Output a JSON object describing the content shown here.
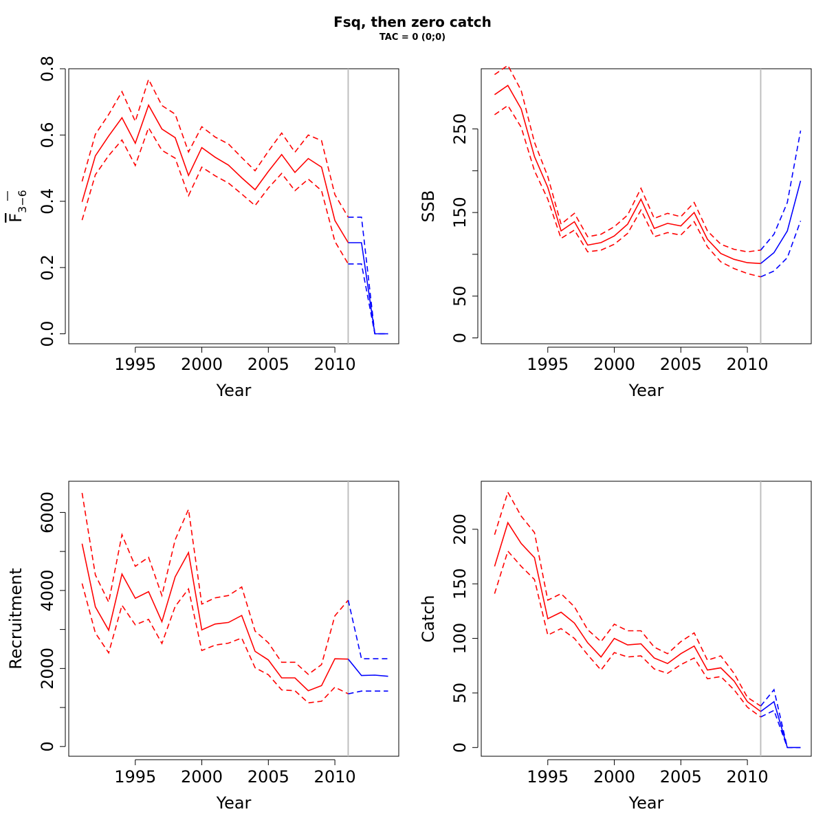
{
  "title": "Fsq, then zero catch",
  "subtitle": "TAC = 0 (0;0)",
  "colors": {
    "historical": "#ff0000",
    "forecast": "#0000ff",
    "divider": "#bebebe"
  },
  "chart_data": [
    {
      "type": "line",
      "ylabel": "F̅ 3−6",
      "ylabel_main": "F",
      "ylabel_sub": "3−6",
      "xlabel": "Year",
      "xlim": [
        1990,
        2014.8
      ],
      "ylim": [
        -0.03,
        0.8
      ],
      "xticks": [
        "1995",
        "2000",
        "2005",
        "2010"
      ],
      "yticks": [
        "0.0",
        "0.2",
        "0.4",
        "0.6",
        "0.8"
      ],
      "ytick_values": [
        0,
        0.2,
        0.4,
        0.6,
        0.8
      ],
      "ytick_minor": [],
      "divider_year": 2011,
      "series": [
        {
          "role": "estimate",
          "period": "historical",
          "style": "solid",
          "x": [
            1991,
            1992,
            1993,
            1994,
            1995,
            1996,
            1997,
            1998,
            1999,
            2000,
            2001,
            2002,
            2003,
            2004,
            2005,
            2006,
            2007,
            2008,
            2009,
            2010,
            2011
          ],
          "values": [
            0.398,
            0.537,
            0.597,
            0.652,
            0.575,
            0.69,
            0.618,
            0.592,
            0.478,
            0.562,
            0.533,
            0.509,
            0.471,
            0.435,
            0.49,
            0.541,
            0.487,
            0.529,
            0.503,
            0.342,
            0.275
          ]
        },
        {
          "role": "upper",
          "period": "historical",
          "style": "dashed",
          "x": [
            1991,
            1992,
            1993,
            1994,
            1995,
            1996,
            1997,
            1998,
            1999,
            2000,
            2001,
            2002,
            2003,
            2004,
            2005,
            2006,
            2007,
            2008,
            2009,
            2010,
            2011
          ],
          "values": [
            0.46,
            0.602,
            0.662,
            0.731,
            0.641,
            0.768,
            0.689,
            0.663,
            0.549,
            0.625,
            0.594,
            0.573,
            0.532,
            0.492,
            0.551,
            0.606,
            0.548,
            0.6,
            0.583,
            0.42,
            0.352
          ]
        },
        {
          "role": "lower",
          "period": "historical",
          "style": "dashed",
          "x": [
            1991,
            1992,
            1993,
            1994,
            1995,
            1996,
            1997,
            1998,
            1999,
            2000,
            2001,
            2002,
            2003,
            2004,
            2005,
            2006,
            2007,
            2008,
            2009,
            2010,
            2011
          ],
          "values": [
            0.343,
            0.48,
            0.538,
            0.585,
            0.508,
            0.622,
            0.554,
            0.53,
            0.417,
            0.503,
            0.477,
            0.455,
            0.422,
            0.387,
            0.44,
            0.484,
            0.432,
            0.467,
            0.432,
            0.279,
            0.211
          ]
        },
        {
          "role": "estimate",
          "period": "forecast",
          "style": "solid",
          "x": [
            2011,
            2012,
            2013,
            2014
          ],
          "values": [
            0.275,
            0.275,
            0.0,
            0.0
          ]
        },
        {
          "role": "upper",
          "period": "forecast",
          "style": "dashed",
          "x": [
            2011,
            2012,
            2013,
            2014
          ],
          "values": [
            0.352,
            0.352,
            0.0,
            0.0
          ]
        },
        {
          "role": "lower",
          "period": "forecast",
          "style": "dashed",
          "x": [
            2011,
            2012,
            2013,
            2014
          ],
          "values": [
            0.211,
            0.211,
            0.0,
            0.0
          ]
        }
      ]
    },
    {
      "type": "line",
      "ylabel": "SSB",
      "xlabel": "Year",
      "xlim": [
        1990,
        2014.8
      ],
      "ylim": [
        -7,
        322
      ],
      "xticks": [
        "1995",
        "2000",
        "2005",
        "2010"
      ],
      "yticks": [
        "0",
        "50",
        "150",
        "250"
      ],
      "ytick_values": [
        0,
        50,
        150,
        250
      ],
      "ytick_minor": [
        100,
        200
      ],
      "divider_year": 2011,
      "series": [
        {
          "role": "estimate",
          "period": "historical",
          "style": "solid",
          "x": [
            1991,
            1992,
            1993,
            1994,
            1995,
            1996,
            1997,
            1998,
            1999,
            2000,
            2001,
            2002,
            2003,
            2004,
            2005,
            2006,
            2007,
            2008,
            2009,
            2010,
            2011
          ],
          "values": [
            291,
            302,
            274,
            217,
            180,
            128,
            139,
            111,
            114,
            122,
            136,
            166,
            131,
            137,
            134,
            150,
            118,
            101,
            94,
            90,
            89
          ]
        },
        {
          "role": "upper",
          "period": "historical",
          "style": "dashed",
          "x": [
            1991,
            1992,
            1993,
            1994,
            1995,
            1996,
            1997,
            1998,
            1999,
            2000,
            2001,
            2002,
            2003,
            2004,
            2005,
            2006,
            2007,
            2008,
            2009,
            2010,
            2011
          ],
          "values": [
            315,
            326,
            296,
            234,
            193,
            136,
            149,
            121,
            124,
            133,
            147,
            179,
            143,
            149,
            145,
            162,
            128,
            112,
            106,
            103,
            105
          ]
        },
        {
          "role": "lower",
          "period": "historical",
          "style": "dashed",
          "x": [
            1991,
            1992,
            1993,
            1994,
            1995,
            1996,
            1997,
            1998,
            1999,
            2000,
            2001,
            2002,
            2003,
            2004,
            2005,
            2006,
            2007,
            2008,
            2009,
            2010,
            2011
          ],
          "values": [
            267,
            278,
            252,
            200,
            166,
            119,
            129,
            103,
            105,
            112,
            125,
            153,
            121,
            126,
            123,
            139,
            109,
            91,
            83,
            77,
            73
          ]
        },
        {
          "role": "estimate",
          "period": "forecast",
          "style": "solid",
          "x": [
            2011,
            2012,
            2013,
            2014
          ],
          "values": [
            89,
            102,
            128,
            188
          ]
        },
        {
          "role": "upper",
          "period": "forecast",
          "style": "dashed",
          "x": [
            2011,
            2012,
            2013,
            2014
          ],
          "values": [
            105,
            124,
            162,
            248
          ]
        },
        {
          "role": "lower",
          "period": "forecast",
          "style": "dashed",
          "x": [
            2011,
            2012,
            2013,
            2014
          ],
          "values": [
            73,
            80,
            96,
            140
          ]
        }
      ]
    },
    {
      "type": "line",
      "ylabel": "Recruitment",
      "xlabel": "Year",
      "xlim": [
        1990,
        2014.8
      ],
      "ylim": [
        -250,
        6800
      ],
      "xticks": [
        "1995",
        "2000",
        "2005",
        "2010"
      ],
      "yticks": [
        "0",
        "2000",
        "4000",
        "6000"
      ],
      "ytick_values": [
        0,
        2000,
        4000,
        6000
      ],
      "ytick_minor": [
        1000,
        3000,
        5000
      ],
      "divider_year": 2011,
      "series": [
        {
          "role": "estimate",
          "period": "historical",
          "style": "solid",
          "x": [
            1991,
            1992,
            1993,
            1994,
            1995,
            1996,
            1997,
            1998,
            1999,
            2000,
            2001,
            2002,
            2003,
            2004,
            2005,
            2006,
            2007,
            2008,
            2009,
            2010,
            2011
          ],
          "values": [
            5200,
            3580,
            2980,
            4420,
            3800,
            3970,
            3200,
            4350,
            4970,
            2990,
            3140,
            3180,
            3360,
            2440,
            2220,
            1760,
            1760,
            1430,
            1560,
            2250,
            2240
          ]
        },
        {
          "role": "upper",
          "period": "historical",
          "style": "dashed",
          "x": [
            1991,
            1992,
            1993,
            1994,
            1995,
            1996,
            1997,
            1998,
            1999,
            2000,
            2001,
            2002,
            2003,
            2004,
            2005,
            2006,
            2007,
            2008,
            2009,
            2010,
            2011
          ],
          "values": [
            6500,
            4400,
            3700,
            5430,
            4620,
            4850,
            3870,
            5300,
            6080,
            3650,
            3810,
            3870,
            4090,
            2960,
            2660,
            2160,
            2160,
            1850,
            2100,
            3350,
            3750
          ]
        },
        {
          "role": "lower",
          "period": "historical",
          "style": "dashed",
          "x": [
            1991,
            1992,
            1993,
            1994,
            1995,
            1996,
            1997,
            1998,
            1999,
            2000,
            2001,
            2002,
            2003,
            2004,
            2005,
            2006,
            2007,
            2008,
            2009,
            2010,
            2011
          ],
          "values": [
            4180,
            2910,
            2400,
            3620,
            3120,
            3260,
            2640,
            3590,
            4040,
            2460,
            2600,
            2650,
            2780,
            2020,
            1840,
            1450,
            1430,
            1120,
            1160,
            1520,
            1350
          ]
        },
        {
          "role": "estimate",
          "period": "forecast",
          "style": "solid",
          "x": [
            2011,
            2012,
            2013,
            2014
          ],
          "values": [
            2240,
            1820,
            1830,
            1800
          ]
        },
        {
          "role": "upper",
          "period": "forecast",
          "style": "dashed",
          "x": [
            2011,
            2012,
            2013,
            2014
          ],
          "values": [
            3750,
            2250,
            2250,
            2250
          ]
        },
        {
          "role": "lower",
          "period": "forecast",
          "style": "dashed",
          "x": [
            2011,
            2012,
            2013,
            2014
          ],
          "values": [
            1350,
            1420,
            1420,
            1420
          ]
        }
      ]
    },
    {
      "type": "line",
      "ylabel": "Catch",
      "xlabel": "Year",
      "xlim": [
        1990,
        2014.8
      ],
      "ylim": [
        -8,
        244
      ],
      "xticks": [
        "1995",
        "2000",
        "2005",
        "2010"
      ],
      "yticks": [
        "0",
        "50",
        "100",
        "150",
        "200"
      ],
      "ytick_values": [
        0,
        50,
        100,
        150,
        200
      ],
      "ytick_minor": [],
      "divider_year": 2011,
      "series": [
        {
          "role": "estimate",
          "period": "historical",
          "style": "solid",
          "x": [
            1991,
            1992,
            1993,
            1994,
            1995,
            1996,
            1997,
            1998,
            1999,
            2000,
            2001,
            2002,
            2003,
            2004,
            2005,
            2006,
            2007,
            2008,
            2009,
            2010,
            2011
          ],
          "values": [
            166,
            206,
            187,
            174,
            118,
            124,
            114,
            96,
            83,
            100,
            94,
            95,
            82,
            77,
            86,
            93,
            71,
            73,
            61,
            42,
            33
          ]
        },
        {
          "role": "upper",
          "period": "historical",
          "style": "dashed",
          "x": [
            1991,
            1992,
            1993,
            1994,
            1995,
            1996,
            1997,
            1998,
            1999,
            2000,
            2001,
            2002,
            2003,
            2004,
            2005,
            2006,
            2007,
            2008,
            2009,
            2010,
            2011
          ],
          "values": [
            195,
            234,
            212,
            197,
            135,
            141,
            129,
            108,
            97,
            113,
            107,
            107,
            92,
            86,
            97,
            105,
            80,
            84,
            68,
            46,
            38
          ]
        },
        {
          "role": "lower",
          "period": "historical",
          "style": "dashed",
          "x": [
            1991,
            1992,
            1993,
            1994,
            1995,
            1996,
            1997,
            1998,
            1999,
            2000,
            2001,
            2002,
            2003,
            2004,
            2005,
            2006,
            2007,
            2008,
            2009,
            2010,
            2011
          ],
          "values": [
            141,
            180,
            166,
            154,
            103,
            109,
            100,
            85,
            71,
            87,
            83,
            84,
            72,
            68,
            76,
            82,
            63,
            65,
            53,
            37,
            28
          ]
        },
        {
          "role": "estimate",
          "period": "forecast",
          "style": "solid",
          "x": [
            2011,
            2012,
            2013,
            2014
          ],
          "values": [
            33,
            42,
            0,
            0
          ]
        },
        {
          "role": "upper",
          "period": "forecast",
          "style": "dashed",
          "x": [
            2011,
            2012,
            2013,
            2014
          ],
          "values": [
            38,
            53,
            0,
            0
          ]
        },
        {
          "role": "lower",
          "period": "forecast",
          "style": "dashed",
          "x": [
            2011,
            2012,
            2013,
            2014
          ],
          "values": [
            28,
            34,
            0,
            0
          ]
        }
      ]
    }
  ]
}
